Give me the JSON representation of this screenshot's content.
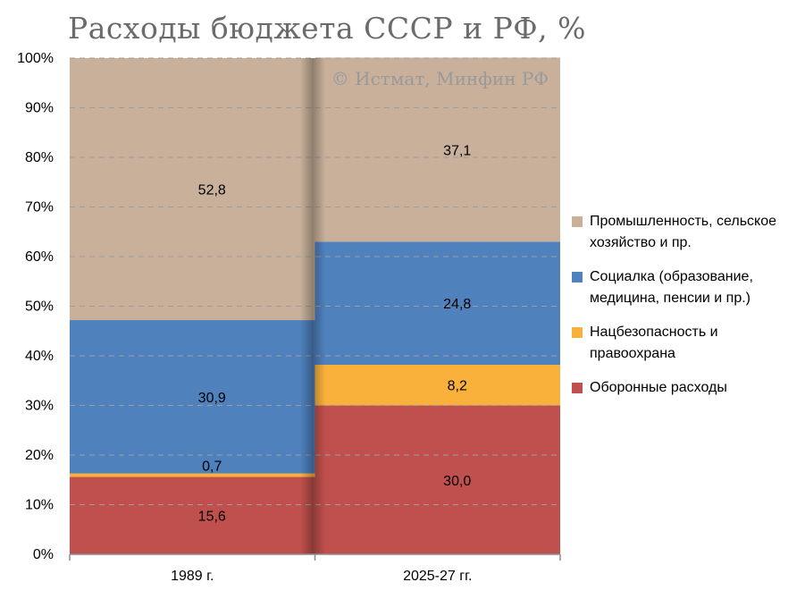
{
  "title": "Расходы бюджета СССР и РФ, %",
  "watermark": "© Истмат, Минфин РФ",
  "chart_data": {
    "type": "bar",
    "stacked": true,
    "categories": [
      "1989 г.",
      "2025-27 гг."
    ],
    "yticks": [
      "0%",
      "10%",
      "20%",
      "30%",
      "40%",
      "50%",
      "60%",
      "70%",
      "80%",
      "90%",
      "100%"
    ],
    "ylim": [
      0,
      100
    ],
    "grid": true,
    "legend_position": "right",
    "series": [
      {
        "name": "Оборонные расходы",
        "values": [
          15.6,
          30.0
        ],
        "labels": [
          "15,6",
          "30,0"
        ],
        "color": "#c0504d"
      },
      {
        "name": "Нацбезопасность и правоохрана",
        "values": [
          0.7,
          8.2
        ],
        "labels": [
          "0,7",
          "8,2"
        ],
        "color": "#f9b13b"
      },
      {
        "name": "Социалка (образование, медицина, пенсии и пр.)",
        "values": [
          30.9,
          24.8
        ],
        "labels": [
          "30,9",
          "24,8"
        ],
        "color": "#4f81bd"
      },
      {
        "name": "Промышленность, сельское хозяйство и пр.",
        "values": [
          52.8,
          37.1
        ],
        "labels": [
          "52,8",
          "37,1"
        ],
        "color": "#c8b09a"
      }
    ]
  }
}
